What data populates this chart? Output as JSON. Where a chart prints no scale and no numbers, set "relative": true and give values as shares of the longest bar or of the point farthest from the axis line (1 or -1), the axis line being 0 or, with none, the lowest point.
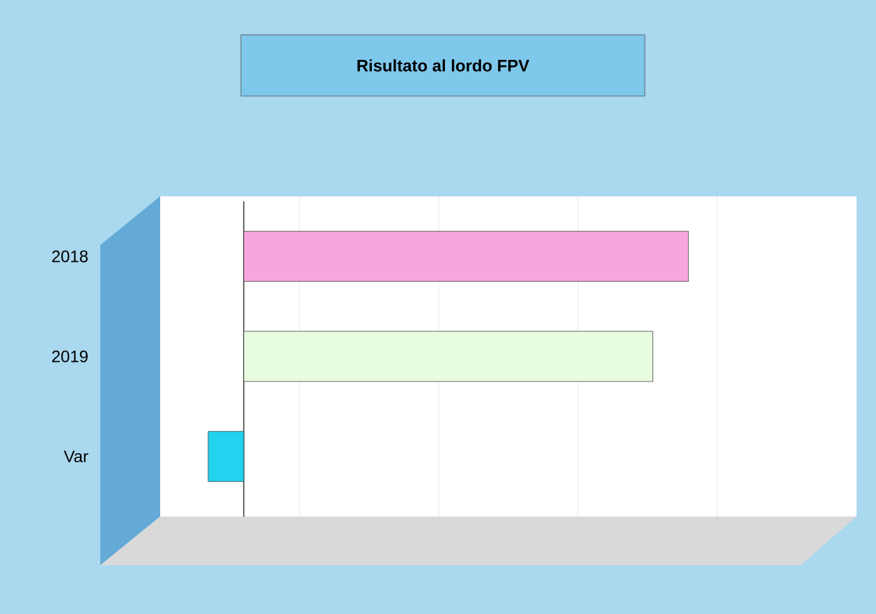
{
  "chart_data": {
    "type": "bar",
    "orientation": "horizontal",
    "relative": true,
    "title": "Risultato al lordo FPV",
    "categories": [
      "2018",
      "2019",
      "Var"
    ],
    "values": [
      1,
      0.92,
      -0.08
    ],
    "colors": [
      "#f7a6de",
      "#e8fde0",
      "#22d2ee"
    ],
    "grid": "x"
  }
}
